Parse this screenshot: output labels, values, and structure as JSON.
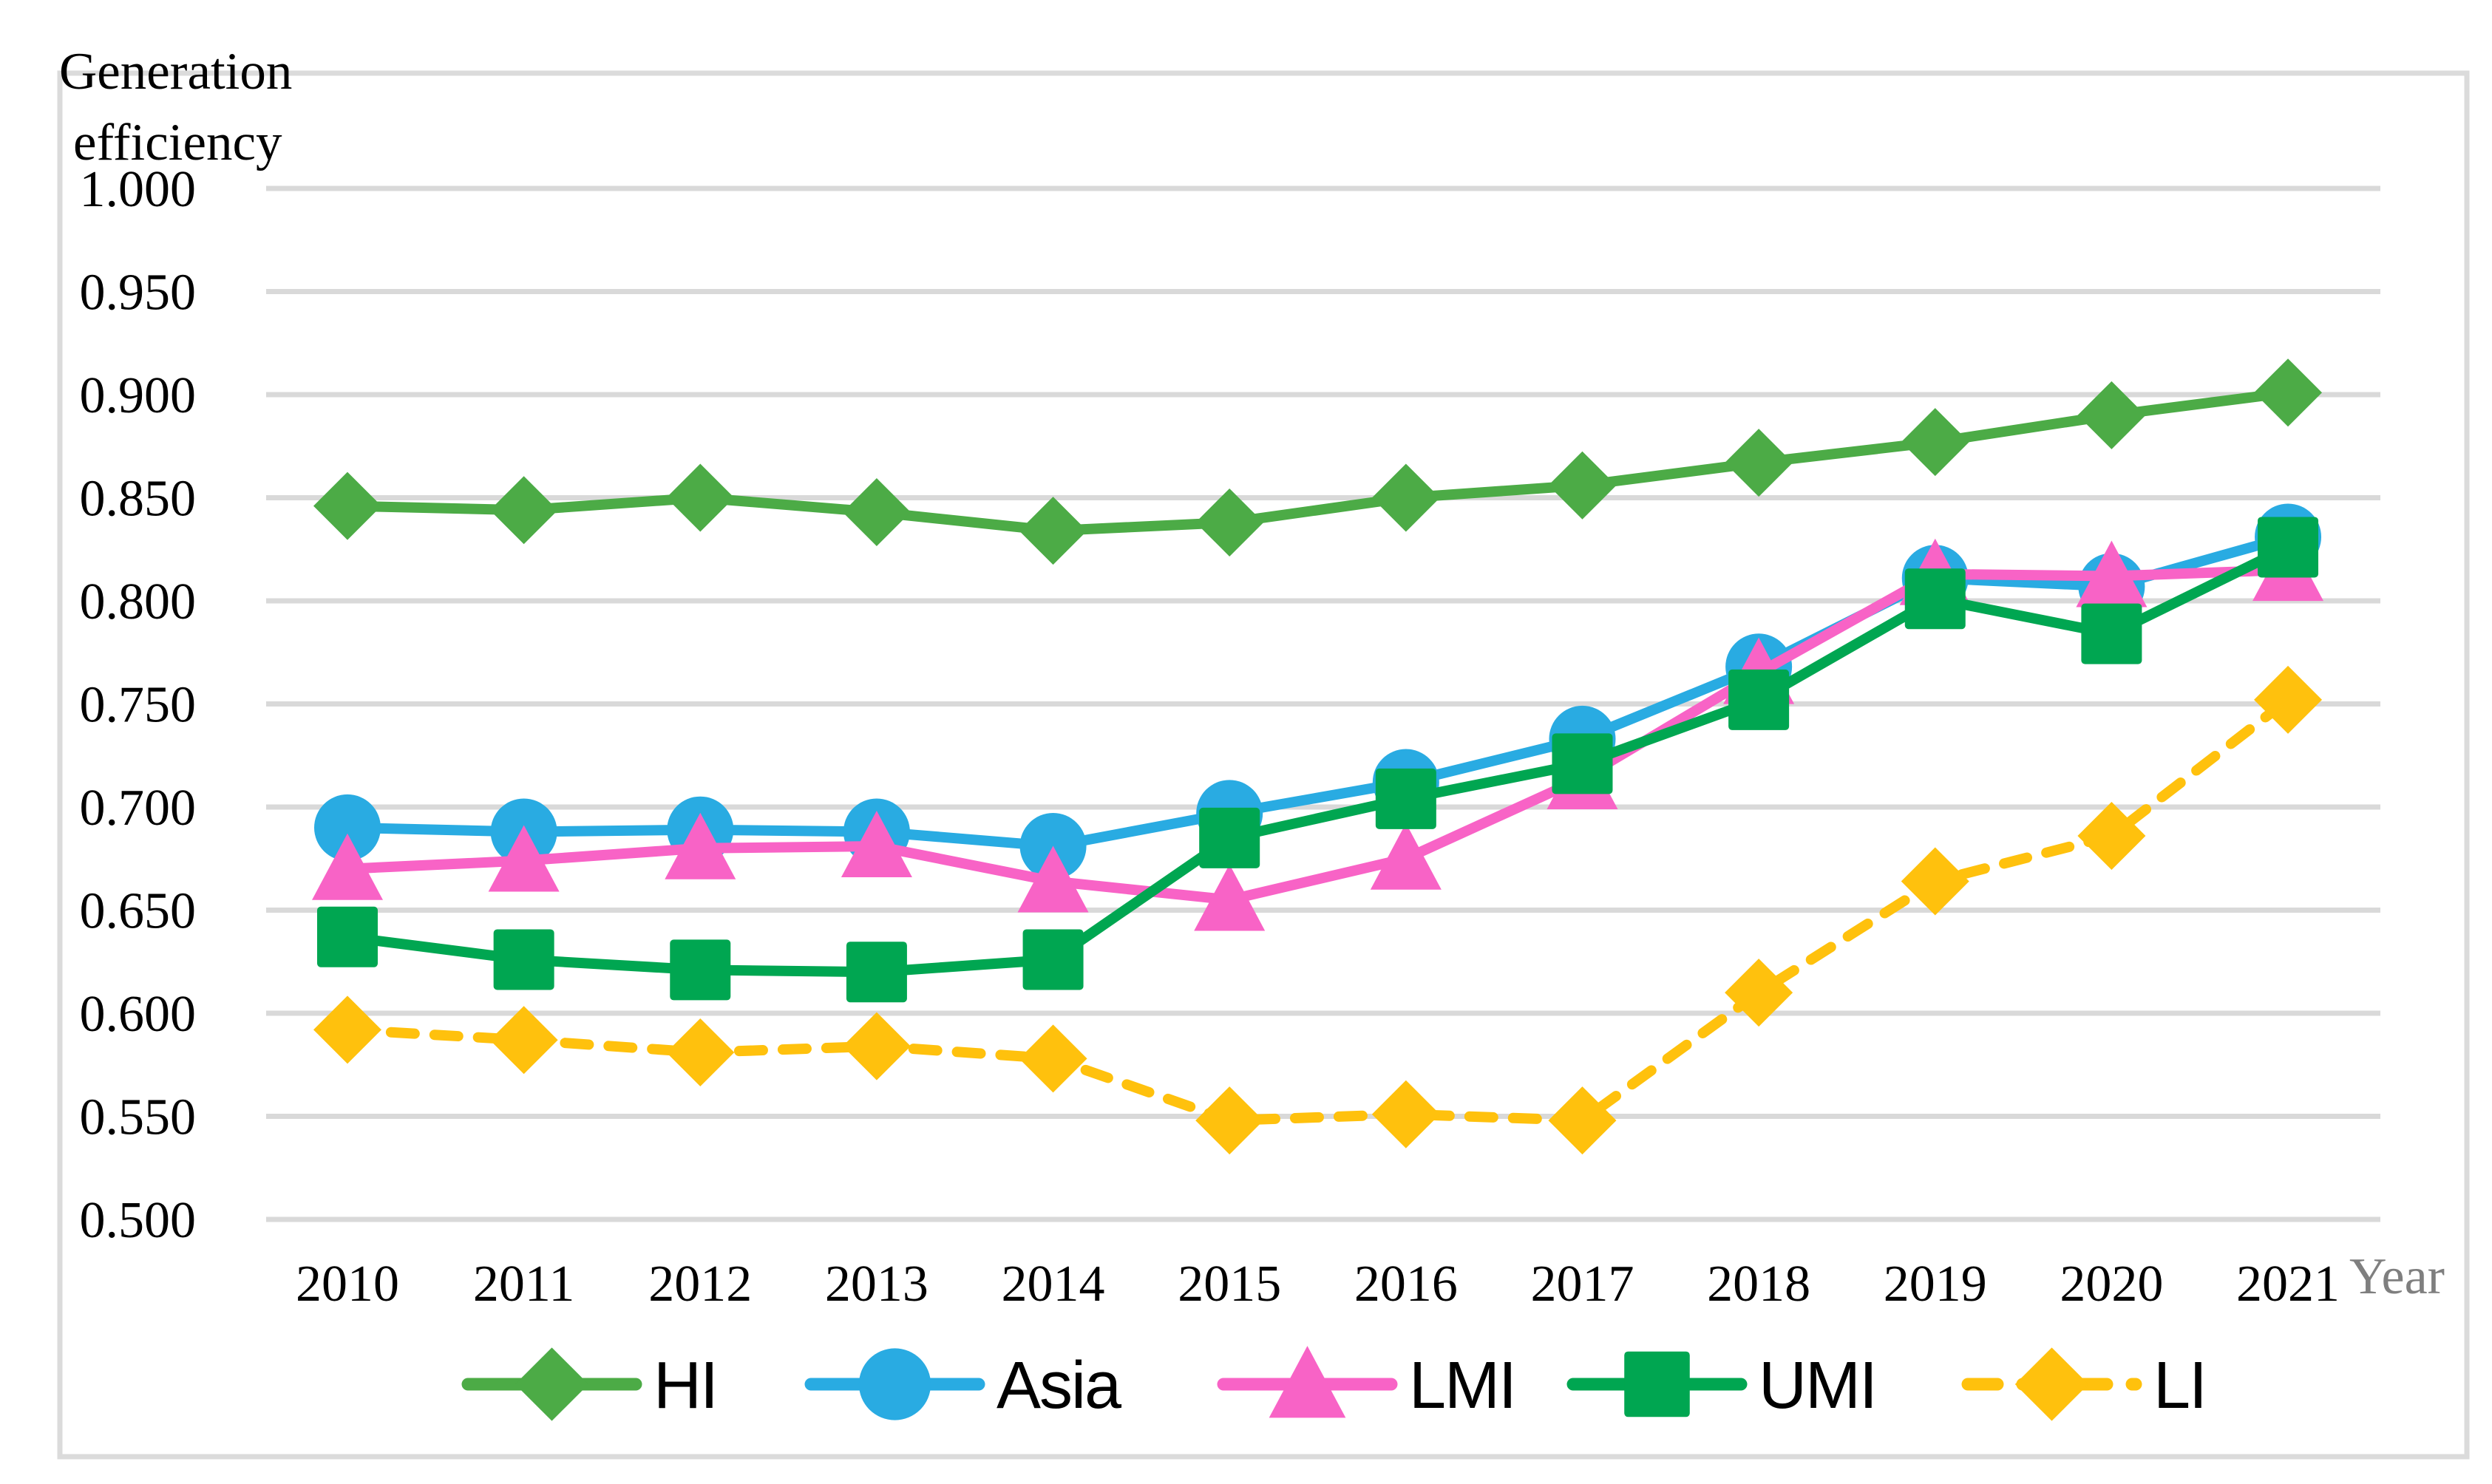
{
  "figure": {
    "ylabel_line1": "Generation",
    "ylabel_line2": "efficiency",
    "xlabel": "Year"
  },
  "colors": {
    "gridline": "#D9D9D9",
    "frame": "#DBDBDB",
    "axis_text": "#000000",
    "year_label": "#7F7F7F",
    "background": "#FFFFFF"
  },
  "chart_data": {
    "type": "line",
    "title": "",
    "ylabel": "Generation efficiency",
    "xlabel": "Year",
    "grid": true,
    "legend_position": "bottom",
    "ylim": [
      0.5,
      1.0
    ],
    "ytick_step": 0.05,
    "ytick_labels": [
      "1.000",
      "0.950",
      "0.900",
      "0.850",
      "0.800",
      "0.750",
      "0.700",
      "0.650",
      "0.600",
      "0.550",
      "0.500"
    ],
    "categories": [
      "2010",
      "2011",
      "2012",
      "2013",
      "2014",
      "2015",
      "2016",
      "2017",
      "2018",
      "2019",
      "2020",
      "2021"
    ],
    "series": [
      {
        "name": "HI",
        "color": "#4CAB46",
        "marker": "diamond",
        "line_style": "solid",
        "values": [
          0.846,
          0.844,
          0.85,
          0.843,
          0.834,
          0.838,
          0.85,
          0.856,
          0.867,
          0.877,
          0.89,
          0.901
        ]
      },
      {
        "name": "Asia",
        "color": "#29ABE2",
        "marker": "circle",
        "line_style": "solid",
        "values": [
          0.69,
          0.688,
          0.689,
          0.688,
          0.681,
          0.697,
          0.712,
          0.733,
          0.768,
          0.811,
          0.807,
          0.831
        ]
      },
      {
        "name": "LMI",
        "color": "#F863C6",
        "marker": "triangle",
        "line_style": "solid",
        "values": [
          0.67,
          0.674,
          0.68,
          0.681,
          0.664,
          0.655,
          0.675,
          0.714,
          0.765,
          0.813,
          0.812,
          0.815
        ]
      },
      {
        "name": "UMI",
        "color": "#00A651",
        "marker": "square",
        "line_style": "solid",
        "values": [
          0.637,
          0.626,
          0.621,
          0.62,
          0.626,
          0.685,
          0.704,
          0.721,
          0.752,
          0.801,
          0.784,
          0.826
        ]
      },
      {
        "name": "LI",
        "color": "#FFC10D",
        "marker": "diamond",
        "line_style": "dashed",
        "values": [
          0.592,
          0.587,
          0.581,
          0.584,
          0.578,
          0.548,
          0.551,
          0.548,
          0.61,
          0.664,
          0.686,
          0.752
        ]
      }
    ]
  }
}
